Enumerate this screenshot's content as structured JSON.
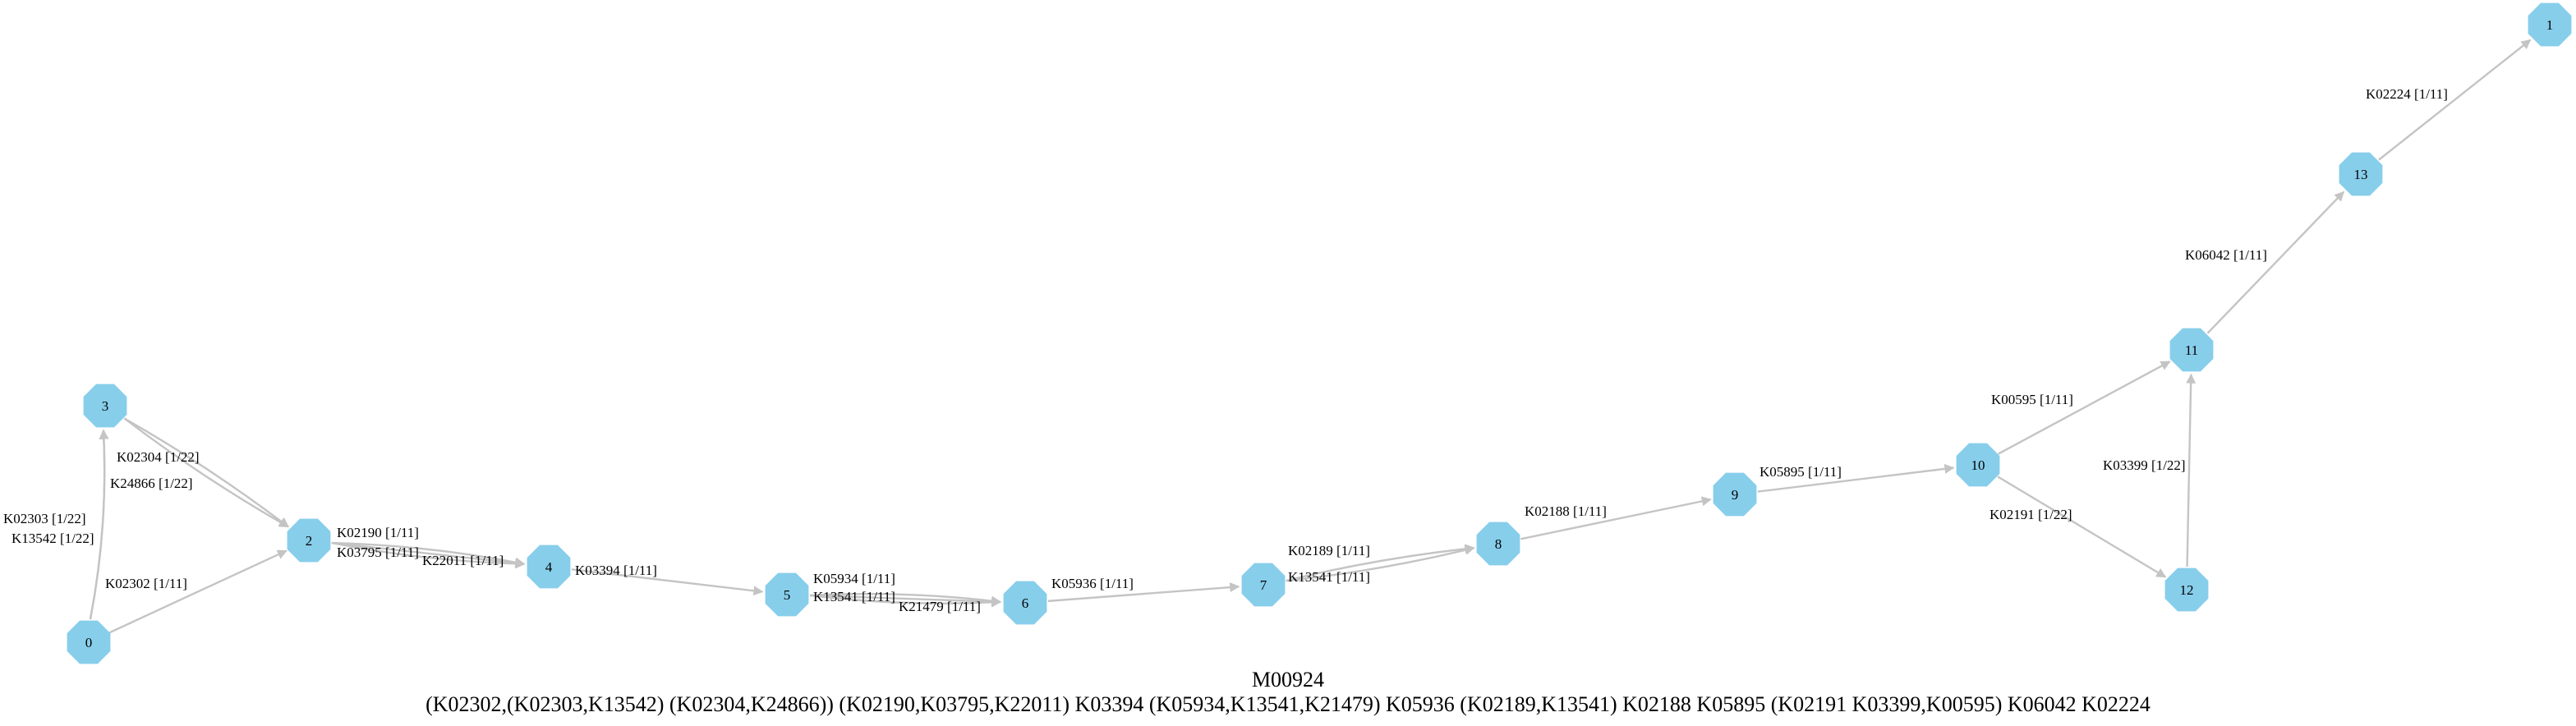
{
  "diagram": {
    "title": "M00924",
    "formula": "(K02302,(K02303,K13542) (K02304,K24866)) (K02190,K03795,K22011) K03394 (K05934,K13541,K21479) K05936 (K02189,K13541) K02188 K05895 (K02191 K03399,K00595) K06042 K02224",
    "node_color": "#87ceeb",
    "edge_color": "#c4c4c4",
    "nodes": [
      {
        "id": "0",
        "label": "0"
      },
      {
        "id": "1",
        "label": "1"
      },
      {
        "id": "2",
        "label": "2"
      },
      {
        "id": "3",
        "label": "3"
      },
      {
        "id": "4",
        "label": "4"
      },
      {
        "id": "5",
        "label": "5"
      },
      {
        "id": "6",
        "label": "6"
      },
      {
        "id": "7",
        "label": "7"
      },
      {
        "id": "8",
        "label": "8"
      },
      {
        "id": "9",
        "label": "9"
      },
      {
        "id": "10",
        "label": "10"
      },
      {
        "id": "11",
        "label": "11"
      },
      {
        "id": "12",
        "label": "12"
      },
      {
        "id": "13",
        "label": "13"
      }
    ],
    "edges": [
      {
        "from": "0",
        "to": "3",
        "label": "K02303 [1/22]"
      },
      {
        "from": "0",
        "to": "3",
        "label": "K13542 [1/22]"
      },
      {
        "from": "0",
        "to": "2",
        "label": "K02302 [1/11]"
      },
      {
        "from": "3",
        "to": "2",
        "label": "K02304 [1/22]"
      },
      {
        "from": "3",
        "to": "2",
        "label": "K24866 [1/22]"
      },
      {
        "from": "2",
        "to": "4",
        "label": "K02190 [1/11]"
      },
      {
        "from": "2",
        "to": "4",
        "label": "K03795 [1/11]"
      },
      {
        "from": "2",
        "to": "4",
        "label": "K22011 [1/11]"
      },
      {
        "from": "4",
        "to": "5",
        "label": "K03394 [1/11]"
      },
      {
        "from": "5",
        "to": "6",
        "label": "K05934 [1/11]"
      },
      {
        "from": "5",
        "to": "6",
        "label": "K13541 [1/11]"
      },
      {
        "from": "5",
        "to": "6",
        "label": "K21479 [1/11]"
      },
      {
        "from": "6",
        "to": "7",
        "label": "K05936 [1/11]"
      },
      {
        "from": "7",
        "to": "8",
        "label": "K02189 [1/11]"
      },
      {
        "from": "7",
        "to": "8",
        "label": "K13541 [1/11]"
      },
      {
        "from": "8",
        "to": "9",
        "label": "K02188 [1/11]"
      },
      {
        "from": "9",
        "to": "10",
        "label": "K05895 [1/11]"
      },
      {
        "from": "10",
        "to": "11",
        "label": "K00595 [1/11]"
      },
      {
        "from": "10",
        "to": "12",
        "label": "K02191 [1/22]"
      },
      {
        "from": "12",
        "to": "11",
        "label": "K03399 [1/22]"
      },
      {
        "from": "11",
        "to": "13",
        "label": "K06042 [1/11]"
      },
      {
        "from": "13",
        "to": "1",
        "label": "K02224 [1/11]"
      }
    ]
  }
}
